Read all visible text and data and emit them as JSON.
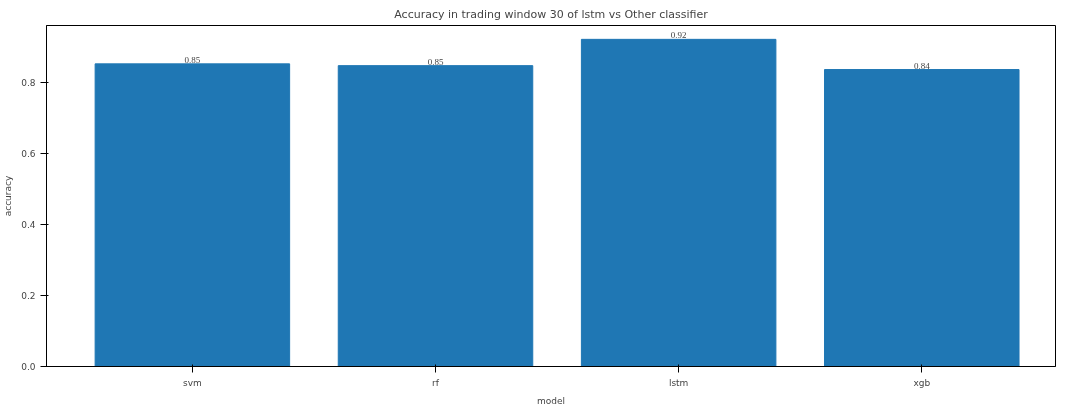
{
  "chart_data": {
    "type": "bar",
    "title": "Accuracy in trading window 30 of lstm vs Other classifier",
    "xlabel": "model",
    "ylabel": "accuracy",
    "categories": [
      "svm",
      "rf",
      "lstm",
      "xgb"
    ],
    "values": [
      0.852,
      0.847,
      0.921,
      0.836
    ],
    "value_labels": [
      "0.85",
      "0.85",
      "0.92",
      "0.84"
    ],
    "color": "#1f77b4",
    "ylim": [
      0,
      0.96
    ],
    "yticks": [
      {
        "value": 0,
        "label": "0.0"
      },
      0.2,
      0.4,
      0.6,
      0.8
    ],
    "grid": false
  }
}
